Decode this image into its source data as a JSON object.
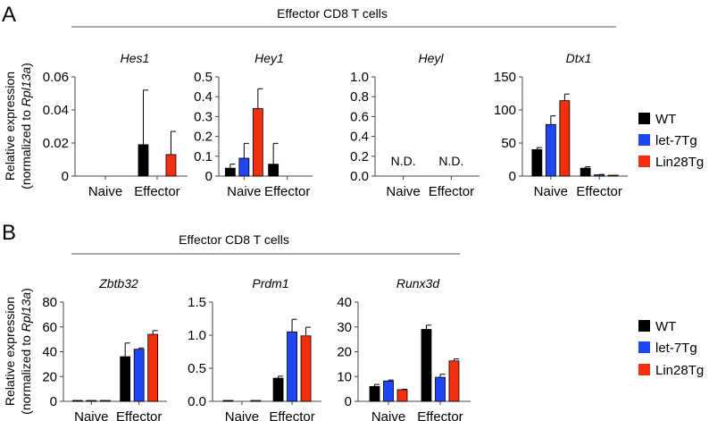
{
  "colors": {
    "WT": "#000000",
    "let-7Tg": "#1f46f2",
    "Lin28Tg": "#f2300f"
  },
  "panels": [
    {
      "label": "A",
      "header": "Effector CD8 T cells"
    },
    {
      "label": "B",
      "header": "Effector CD8 T cells"
    }
  ],
  "ylabel_line1": "Relative expression",
  "ylabel_line2_prefix": "(normalized to ",
  "ylabel_line2_gene": "Rpl13a",
  "ylabel_line2_suffix": ")",
  "legend": [
    "WT",
    "let-7Tg",
    "Lin28Tg"
  ],
  "chart_data": [
    {
      "type": "bar",
      "panel": "A",
      "title": "Hes1",
      "categories": [
        "Naive",
        "Effector"
      ],
      "ylim": [
        0,
        0.06
      ],
      "yticks": [
        "0",
        "0.02",
        "0.04",
        "0.06"
      ],
      "ytick_values": [
        0,
        0.02,
        0.04,
        0.06
      ],
      "series": [
        {
          "name": "WT",
          "values": [
            0,
            0.019
          ],
          "errors": [
            0,
            0.033
          ]
        },
        {
          "name": "let-7Tg",
          "values": [
            0,
            0
          ],
          "errors": [
            0,
            0
          ]
        },
        {
          "name": "Lin28Tg",
          "values": [
            0,
            0.013
          ],
          "errors": [
            0,
            0.014
          ]
        }
      ]
    },
    {
      "type": "bar",
      "panel": "A",
      "title": "Hey1",
      "categories": [
        "Naive",
        "Effector"
      ],
      "ylim": [
        0,
        0.5
      ],
      "yticks": [
        "0",
        "0.1",
        "0.2",
        "0.3",
        "0.4",
        "0.5"
      ],
      "ytick_values": [
        0,
        0.1,
        0.2,
        0.3,
        0.4,
        0.5
      ],
      "series": [
        {
          "name": "WT",
          "values": [
            0.04,
            0.06
          ],
          "errors": [
            0.02,
            0.105
          ]
        },
        {
          "name": "let-7Tg",
          "values": [
            0.09,
            0
          ],
          "errors": [
            0.075,
            0
          ]
        },
        {
          "name": "Lin28Tg",
          "values": [
            0.34,
            0
          ],
          "errors": [
            0.1,
            0
          ]
        }
      ]
    },
    {
      "type": "bar",
      "panel": "A",
      "title": "Heyl",
      "categories": [
        "Naive",
        "Effector"
      ],
      "ylim": [
        0,
        1.0
      ],
      "yticks": [
        "0.0",
        "0.2",
        "0.4",
        "0.6",
        "0.8",
        "1.0"
      ],
      "ytick_values": [
        0,
        0.2,
        0.4,
        0.6,
        0.8,
        1.0
      ],
      "series": [],
      "annotations": [
        "N.D.",
        "N.D."
      ]
    },
    {
      "type": "bar",
      "panel": "A",
      "title": "Dtx1",
      "categories": [
        "Naive",
        "Effector"
      ],
      "ylim": [
        0,
        150
      ],
      "yticks": [
        "0",
        "50",
        "100",
        "150"
      ],
      "ytick_values": [
        0,
        50,
        100,
        150
      ],
      "series": [
        {
          "name": "WT",
          "values": [
            40,
            12
          ],
          "errors": [
            3,
            2
          ]
        },
        {
          "name": "let-7Tg",
          "values": [
            78,
            2
          ],
          "errors": [
            13,
            0.5
          ]
        },
        {
          "name": "Lin28Tg",
          "values": [
            114,
            0.5
          ],
          "errors": [
            10,
            0
          ]
        }
      ]
    },
    {
      "type": "bar",
      "panel": "B",
      "title": "Zbtb32",
      "categories": [
        "Naive",
        "Effector"
      ],
      "ylim": [
        0,
        80
      ],
      "yticks": [
        "0",
        "20",
        "40",
        "60",
        "80"
      ],
      "ytick_values": [
        0,
        20,
        40,
        60,
        80
      ],
      "series": [
        {
          "name": "WT",
          "values": [
            0.3,
            36
          ],
          "errors": [
            0,
            11
          ]
        },
        {
          "name": "let-7Tg",
          "values": [
            0.3,
            42
          ],
          "errors": [
            0,
            1
          ]
        },
        {
          "name": "Lin28Tg",
          "values": [
            0.3,
            54
          ],
          "errors": [
            0,
            3
          ]
        }
      ]
    },
    {
      "type": "bar",
      "panel": "B",
      "title": "Prdm1",
      "categories": [
        "Naive",
        "Effector"
      ],
      "ylim": [
        0,
        1.5
      ],
      "yticks": [
        "0.0",
        "0.5",
        "1.0",
        "1.5"
      ],
      "ytick_values": [
        0,
        0.5,
        1.0,
        1.5
      ],
      "series": [
        {
          "name": "WT",
          "values": [
            0.01,
            0.35
          ],
          "errors": [
            0,
            0.03
          ]
        },
        {
          "name": "let-7Tg",
          "values": [
            0,
            1.05
          ],
          "errors": [
            0,
            0.19
          ]
        },
        {
          "name": "Lin28Tg",
          "values": [
            0.01,
            0.99
          ],
          "errors": [
            0,
            0.13
          ]
        }
      ]
    },
    {
      "type": "bar",
      "panel": "B",
      "title": "Runx3d",
      "categories": [
        "Naive",
        "Effector"
      ],
      "ylim": [
        0,
        40
      ],
      "yticks": [
        "0",
        "10",
        "20",
        "30",
        "40"
      ],
      "ytick_values": [
        0,
        10,
        20,
        30,
        40
      ],
      "series": [
        {
          "name": "WT",
          "values": [
            6,
            29
          ],
          "errors": [
            0.8,
            1.7
          ]
        },
        {
          "name": "let-7Tg",
          "values": [
            8.2,
            9.7
          ],
          "errors": [
            0.4,
            1.2
          ]
        },
        {
          "name": "Lin28Tg",
          "values": [
            4.7,
            16.3
          ],
          "errors": [
            0.2,
            0.8
          ]
        }
      ]
    }
  ]
}
